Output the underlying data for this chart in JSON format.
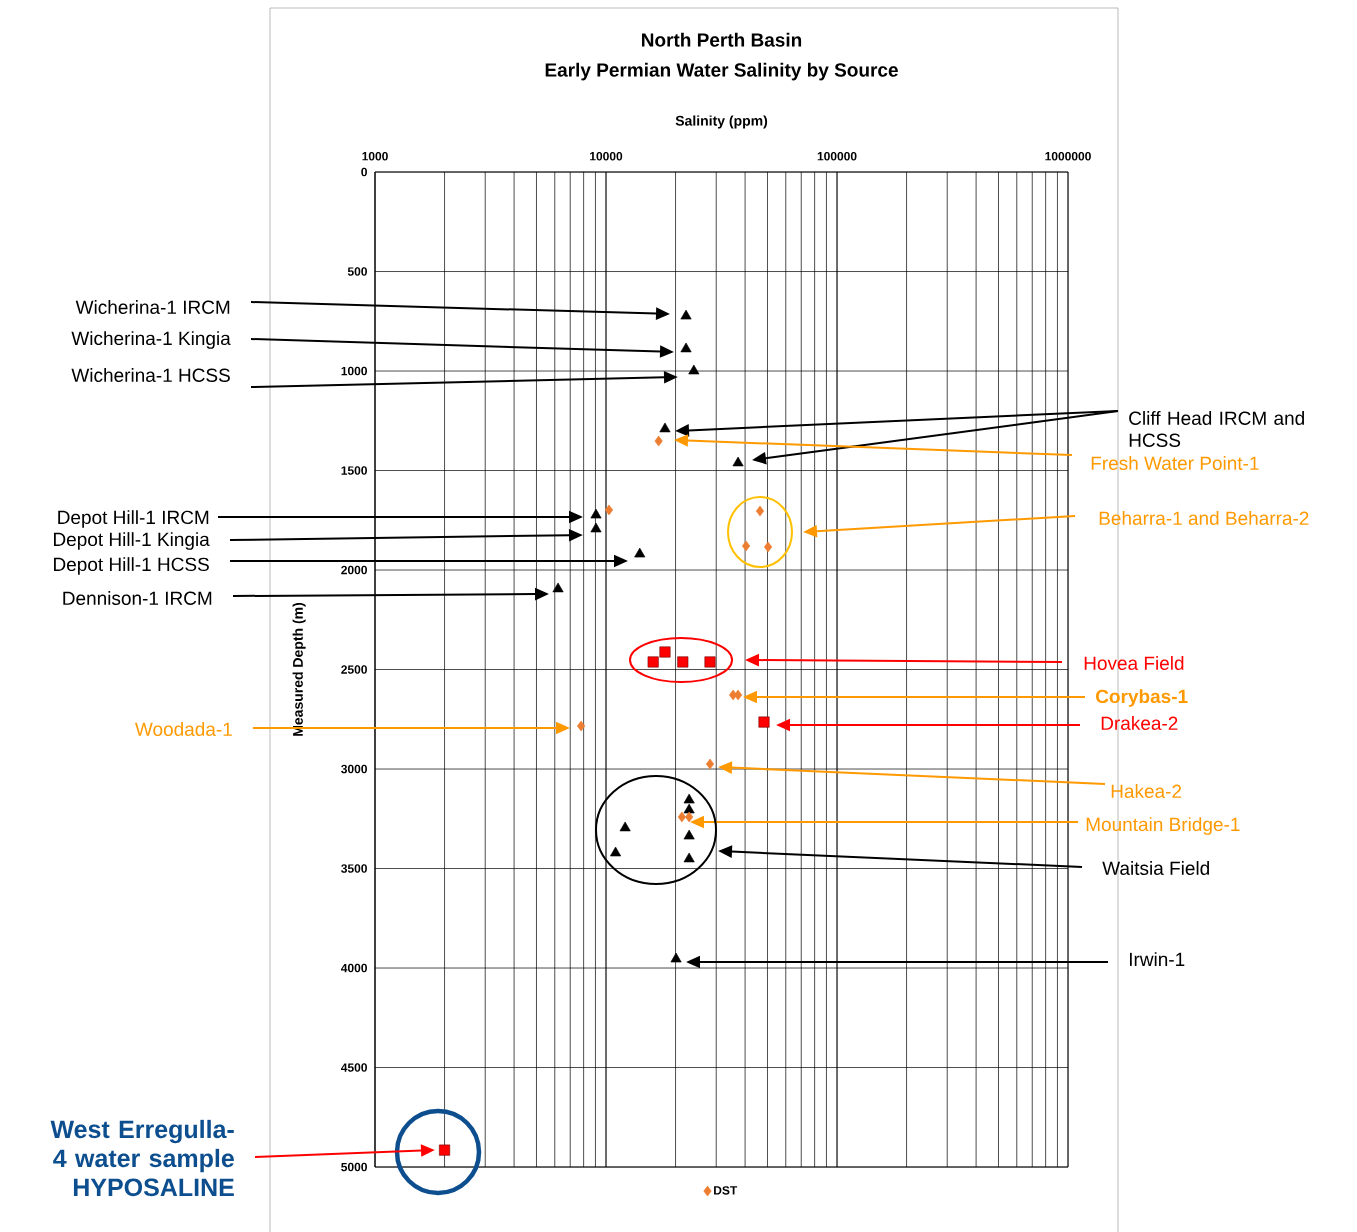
{
  "chart_data": {
    "type": "scatter",
    "title": "North Perth Basin",
    "subtitle": "Early Permian Water Salinity by Source",
    "xlabel": "Salinity (ppm)",
    "ylabel": "Measured Depth (m)",
    "log": "x",
    "xlim": [
      1000,
      1000000
    ],
    "xticks": [
      1000,
      10000,
      100000,
      1000000
    ],
    "ylim": [
      5000,
      0
    ],
    "yticks": [
      0,
      500,
      1000,
      1500,
      2000,
      2500,
      3000,
      3500,
      4000,
      4500,
      5000
    ],
    "grid": true,
    "legend": "bottom",
    "series": [
      {
        "color": "#000000",
        "marker": "triangle",
        "x": [
          22200,
          22200,
          24000,
          18000,
          37300,
          9050,
          9050,
          14000,
          6200,
          22900,
          22900,
          12100,
          22900,
          11000,
          22900,
          20100
        ],
        "values": [
          724,
          889,
          1000,
          1291,
          1462,
          1724,
          1794,
          1920,
          2095,
          3156,
          3206,
          3296,
          3337,
          3422,
          3452,
          3955
        ]
      },
      {
        "name": "DST",
        "color": "#ed7d31",
        "marker": "diamond",
        "x": [
          16900,
          10300,
          46400,
          40400,
          50300,
          35500,
          37300,
          7800,
          28200,
          21300,
          22900
        ],
        "values": [
          1352,
          1698,
          1704,
          1879,
          1884,
          2628,
          2628,
          2784,
          2975,
          3241,
          3241
        ]
      },
      {
        "color": "#ff0000",
        "marker": "square",
        "x": [
          16000,
          18000,
          21500,
          28200,
          48300,
          2000
        ],
        "values": [
          2462,
          2412,
          2462,
          2462,
          2764,
          4915
        ]
      }
    ],
    "annotations": [
      "Wicherina-1 IRCM",
      "Wicherina-1 Kingia",
      "Wicherina-1 HCSS",
      "Cliff Head IRCM and HCSS",
      "Fresh Water Point-1",
      "Beharra-1 and Beharra-2",
      "Depot Hill-1 IRCM",
      "Depot Hill-1 Kingia",
      "Depot Hill-1 HCSS",
      "Dennison-1 IRCM",
      "Hovea Field",
      "Corybas-1",
      "Drakea-2",
      "Woodada-1",
      "Hakea-2",
      "Mountain Bridge-1",
      "Waitsia Field",
      "Irwin-1",
      "West Erregulla-4 water sample HYPOSALINE"
    ]
  }
}
